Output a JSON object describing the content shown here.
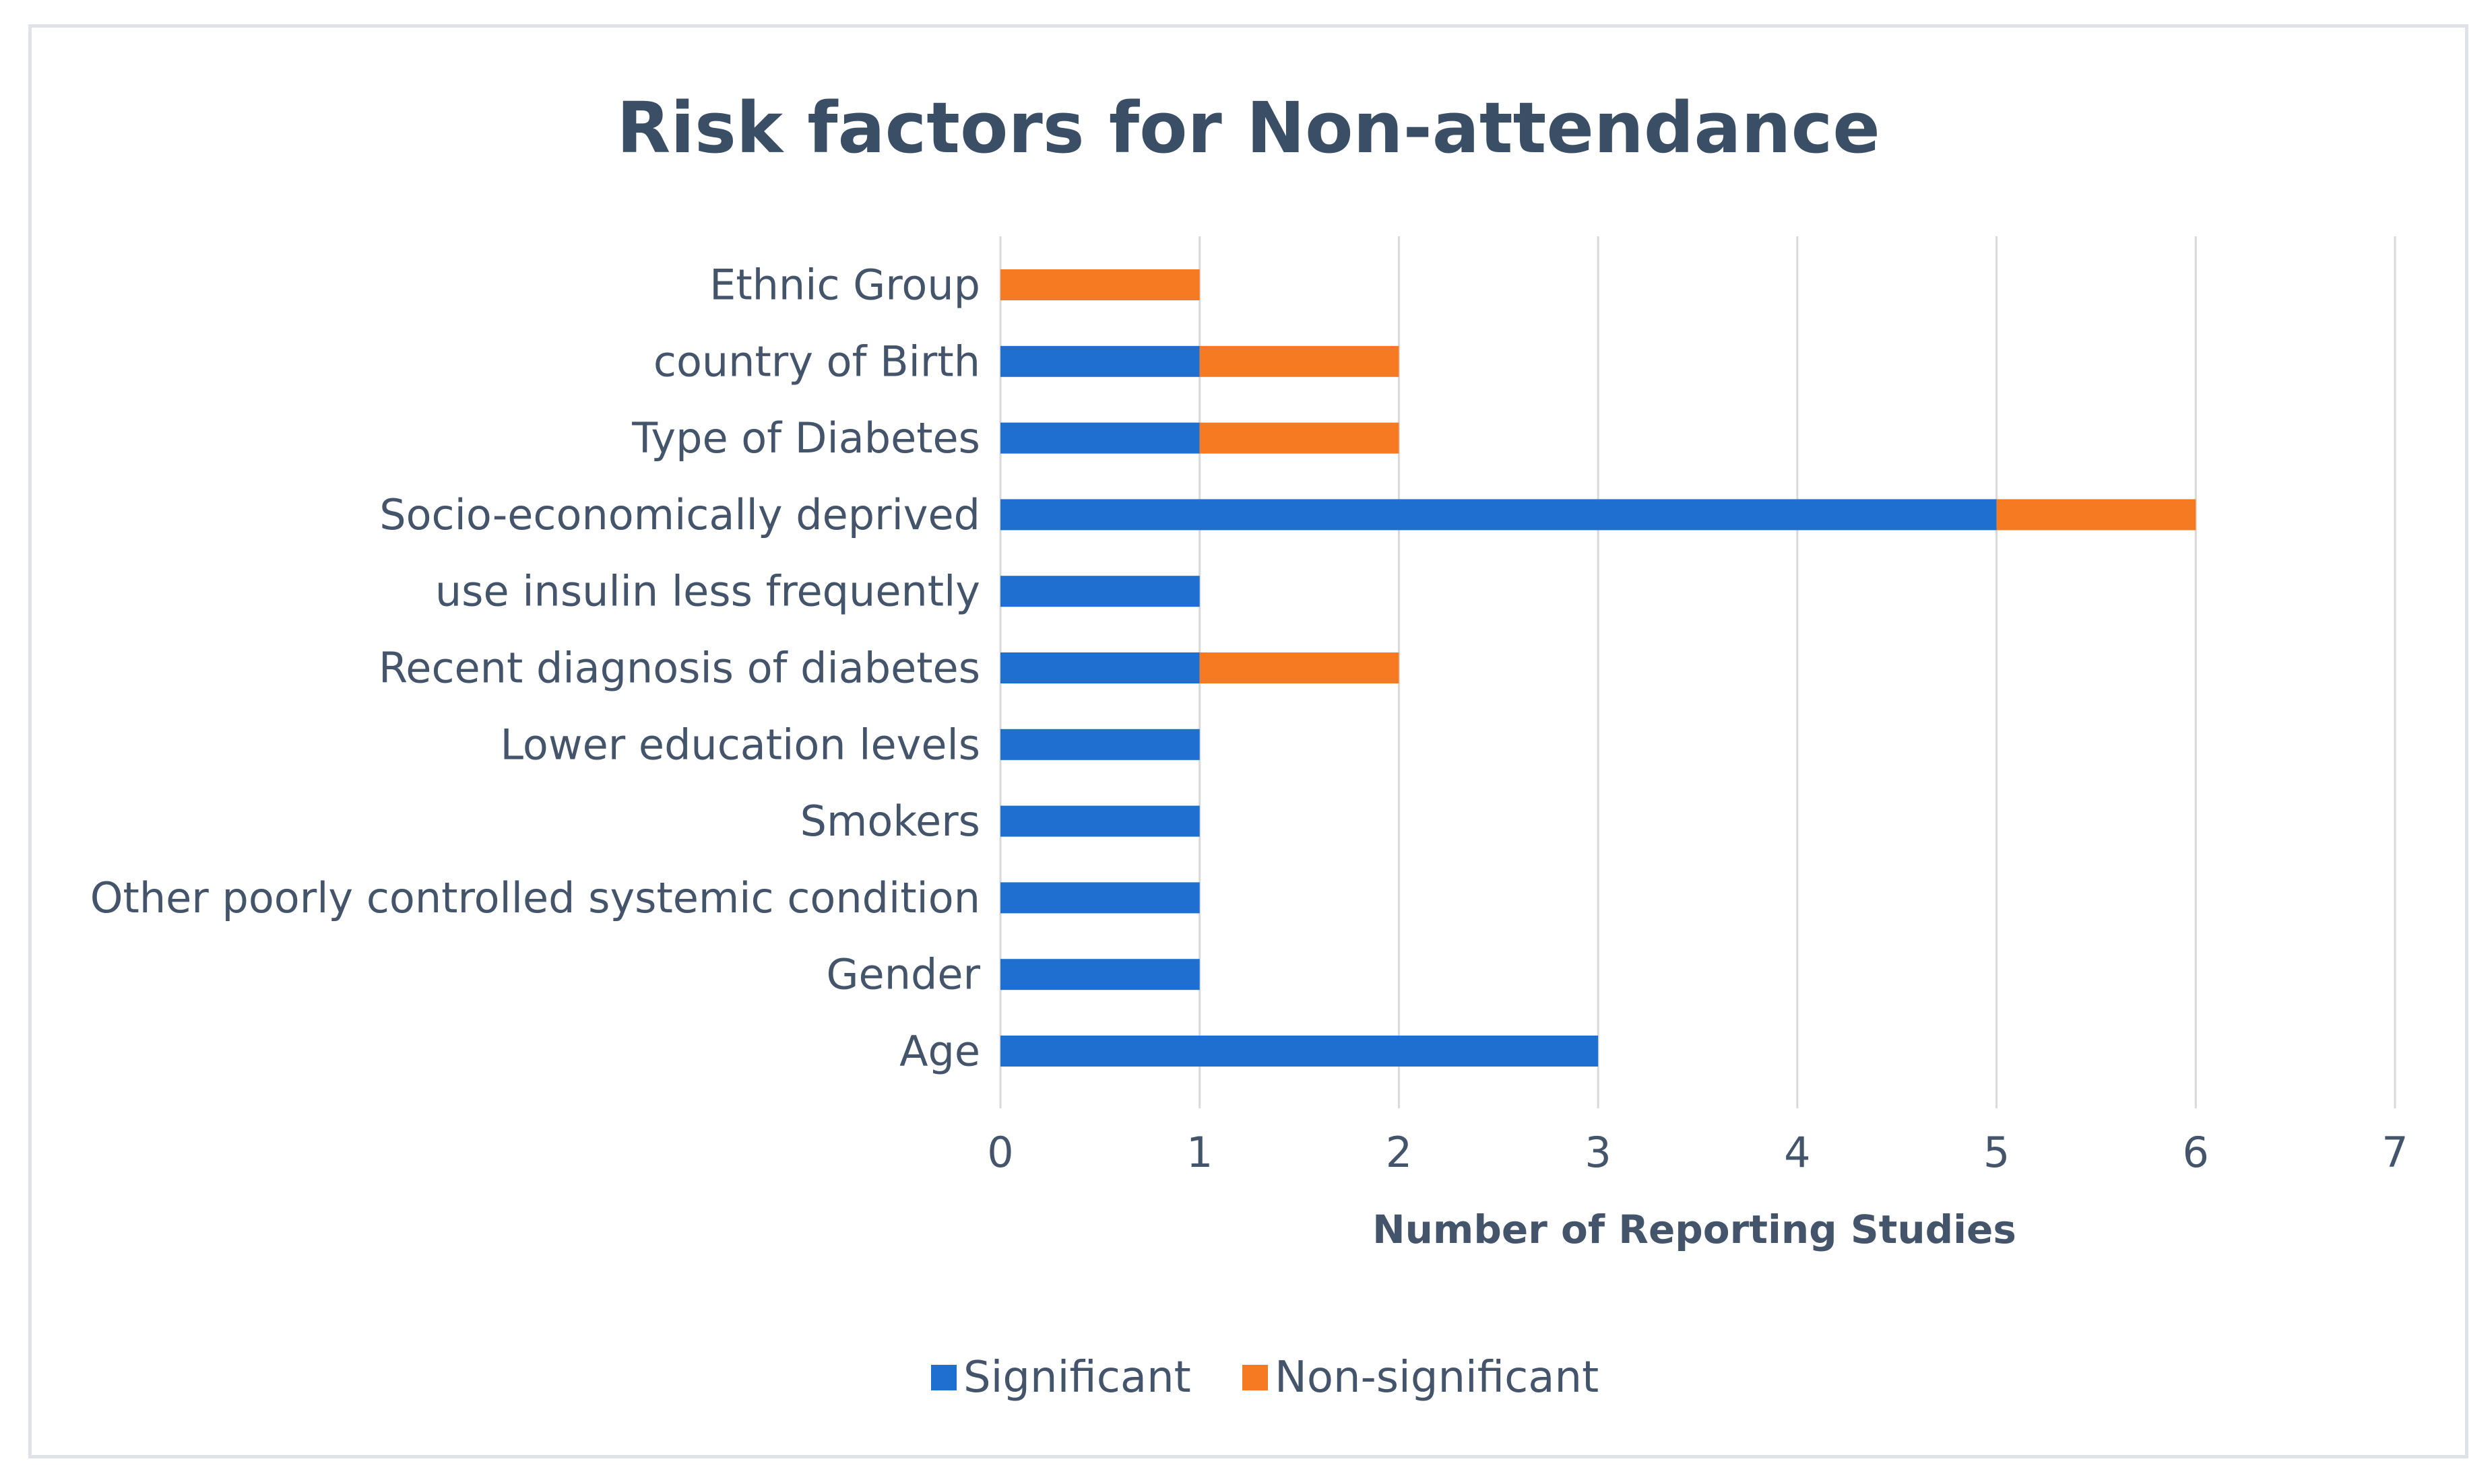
{
  "chart_data": {
    "type": "bar",
    "orientation": "horizontal",
    "stacked": true,
    "title": "Risk factors for Non-attendance",
    "xlabel": "Number of Reporting Studies",
    "ylabel": "",
    "xlim": [
      0,
      7
    ],
    "x_ticks": [
      "0",
      "1",
      "2",
      "3",
      "4",
      "5",
      "6",
      "7"
    ],
    "grid": true,
    "legend_position": "bottom",
    "categories": [
      "Ethnic Group",
      "country of Birth",
      "Type of Diabetes",
      "Socio-economically deprived",
      "use insulin less frequently",
      "Recent diagnosis of diabetes",
      "Lower education levels",
      "Smokers",
      "Other poorly controlled systemic condition",
      "Gender",
      "Age"
    ],
    "series": [
      {
        "name": "Significant",
        "color": "#1f6fd0",
        "values": [
          0,
          1,
          1,
          5,
          1,
          1,
          1,
          1,
          1,
          1,
          3
        ]
      },
      {
        "name": "Non-significant",
        "color": "#f57a22",
        "values": [
          1,
          1,
          1,
          1,
          0,
          1,
          0,
          0,
          0,
          0,
          0
        ]
      }
    ]
  }
}
